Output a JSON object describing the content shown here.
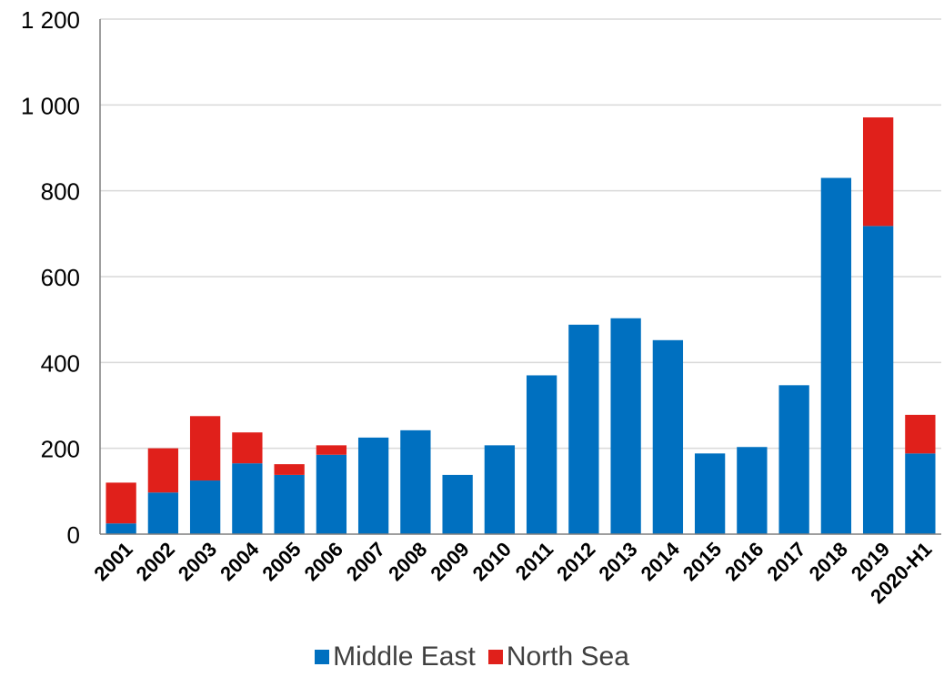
{
  "chart_data": {
    "type": "bar",
    "stacked": true,
    "categories": [
      "2001",
      "2002",
      "2003",
      "2004",
      "2005",
      "2006",
      "2007",
      "2008",
      "2009",
      "2010",
      "2011",
      "2012",
      "2013",
      "2014",
      "2015",
      "2016",
      "2017",
      "2018",
      "2019",
      "2020-H1"
    ],
    "series": [
      {
        "name": "Middle East",
        "color": "#0070c0",
        "values": [
          25,
          97,
          125,
          165,
          138,
          185,
          225,
          242,
          138,
          207,
          370,
          488,
          503,
          452,
          188,
          203,
          347,
          830,
          718,
          188
        ]
      },
      {
        "name": "North Sea",
        "color": "#e0201b",
        "values": [
          95,
          103,
          150,
          72,
          25,
          22,
          0,
          0,
          0,
          0,
          0,
          0,
          0,
          0,
          0,
          0,
          0,
          0,
          253,
          90
        ]
      }
    ],
    "ylim": [
      0,
      1200
    ],
    "yticks": [
      0,
      200,
      400,
      600,
      800,
      1000,
      1200
    ],
    "ytick_labels": [
      "0",
      "200",
      "400",
      "600",
      "800",
      "1 000",
      "1 200"
    ],
    "grid": true,
    "legend_position": "bottom",
    "title": "",
    "xlabel": "",
    "ylabel": ""
  }
}
